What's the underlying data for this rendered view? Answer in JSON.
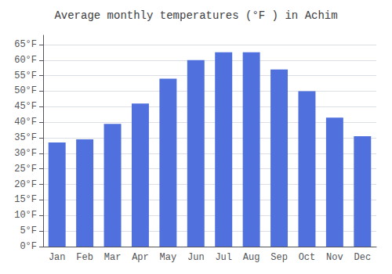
{
  "chart_data": {
    "type": "bar",
    "title": "Average monthly temperatures (°F ) in Achim",
    "categories": [
      "Jan",
      "Feb",
      "Mar",
      "Apr",
      "May",
      "Jun",
      "Jul",
      "Aug",
      "Sep",
      "Oct",
      "Nov",
      "Dec"
    ],
    "values": [
      33.5,
      34.5,
      39.5,
      46.0,
      54.0,
      60.0,
      62.5,
      62.5,
      57.0,
      50.0,
      41.5,
      35.5
    ],
    "ylim": [
      0,
      68
    ],
    "yticks": [
      {
        "value": 0,
        "label": "0°F"
      },
      {
        "value": 5,
        "label": "5°F"
      },
      {
        "value": 10,
        "label": "10°F"
      },
      {
        "value": 15,
        "label": "15°F"
      },
      {
        "value": 20,
        "label": "20°F"
      },
      {
        "value": 25,
        "label": "25°F"
      },
      {
        "value": 30,
        "label": "30°F"
      },
      {
        "value": 35,
        "label": "35°F"
      },
      {
        "value": 40,
        "label": "40°F"
      },
      {
        "value": 45,
        "label": "45°F"
      },
      {
        "value": 50,
        "label": "50°F"
      },
      {
        "value": 55,
        "label": "55°F"
      },
      {
        "value": 60,
        "label": "60°F"
      },
      {
        "value": 65,
        "label": "65°F"
      }
    ],
    "grid": true
  }
}
